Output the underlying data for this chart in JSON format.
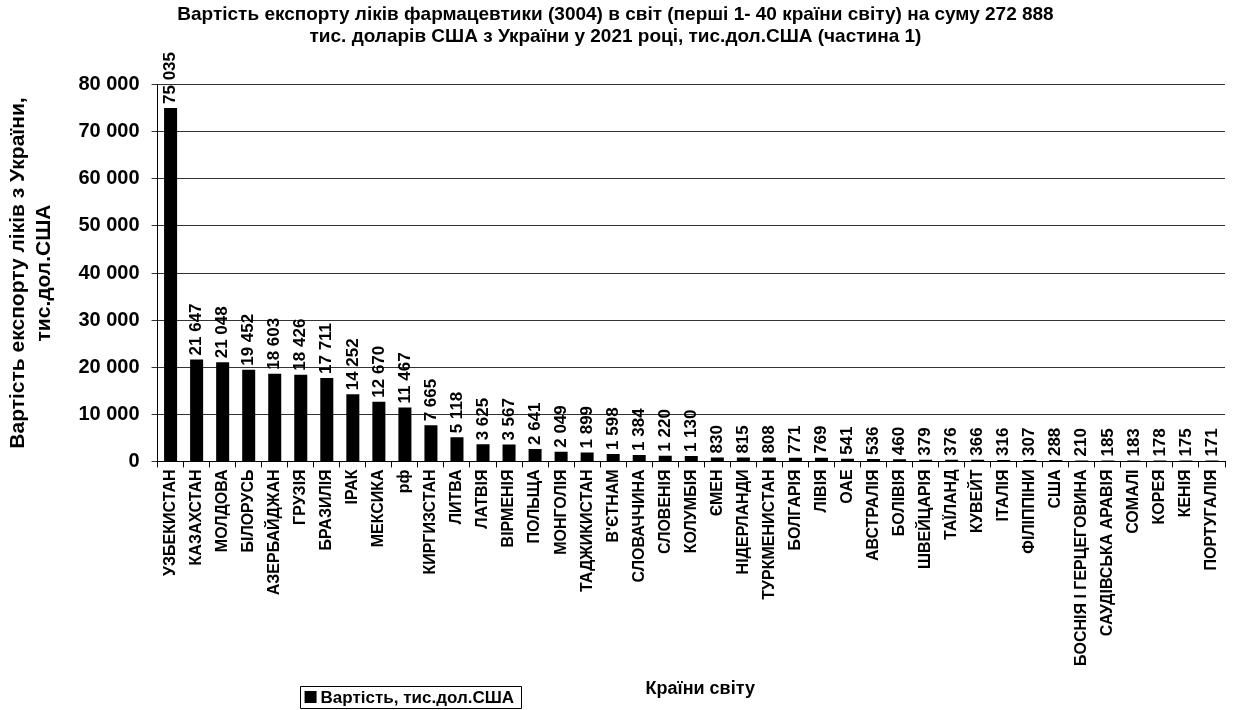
{
  "chart_data": {
    "type": "bar",
    "title": "Вартість експорту ліків фармацевтики (3004) в світ (перші 1- 40 країни світу) на суму 272 888 тис. доларів США з України у 2021 році, тис.дол.США (частина 1)",
    "xlabel": "Країни світу",
    "ylabel": "Вартість експорту ліків з України, тис.дол.США",
    "categories": [
      "УЗБЕКИСТАН",
      "КАЗАХСТАН",
      "МОЛДОВА",
      "БІЛОРУСЬ",
      "АЗЕРБАЙДЖАН",
      "ГРУЗІЯ",
      "БРАЗИЛІЯ",
      "ІРАК",
      "МЕКСИКА",
      "рф",
      "КИРГИЗСТАН",
      "ЛИТВА",
      "ЛАТВІЯ",
      "ВІРМЕНІЯ",
      "ПОЛЬЩА",
      "МОНГОЛІЯ",
      "ТАДЖИКИСТАН",
      "В'ЄТНАМ",
      "СЛОВАЧЧИНА",
      "СЛОВЕНІЯ",
      "КОЛУМБІЯ",
      "ЄМЕН",
      "НІДЕРЛАНДИ",
      "ТУРКМЕНИСТАН",
      "БОЛГАРІЯ",
      "ЛІВІЯ",
      "ОАЕ",
      "АВСТРАЛІЯ",
      "БОЛІВІЯ",
      "ШВЕЙЦАРІЯ",
      "ТАЇЛАНД",
      "КУВЕЙТ",
      "ІТАЛІЯ",
      "ФІЛІППІНИ",
      "США",
      "БОСНІЯ І ГЕРЦЕГОВИНА",
      "САУДІВСЬКА АРАВІЯ",
      "СОМАЛІ",
      "КОРЕЯ",
      "КЕНІЯ",
      "ПОРТУГАЛІЯ"
    ],
    "series": [
      {
        "name": "Вартість, тис.дол.США",
        "color": "#000000",
        "values": [
          75035,
          21647,
          21048,
          19452,
          18603,
          18426,
          17711,
          14252,
          12670,
          11467,
          7665,
          5118,
          3625,
          3567,
          2641,
          2049,
          1899,
          1598,
          1384,
          1220,
          1130,
          830,
          815,
          808,
          771,
          769,
          541,
          536,
          460,
          379,
          376,
          366,
          316,
          307,
          288,
          210,
          185,
          183,
          178,
          175,
          171
        ],
        "value_labels": [
          "75 035",
          "21 647",
          "21 048",
          "19 452",
          "18 603",
          "18 426",
          "17 711",
          "14 252",
          "12 670",
          "11 467",
          "7 665",
          "5 118",
          "3 625",
          "3 567",
          "2 641",
          "2 049",
          "1 899",
          "1 598",
          "1 384",
          "1 220",
          "1 130",
          "830",
          "815",
          "808",
          "771",
          "769",
          "541",
          "536",
          "460",
          "379",
          "376",
          "366",
          "316",
          "307",
          "288",
          "210",
          "185",
          "183",
          "178",
          "175",
          "171"
        ]
      }
    ],
    "ylim": [
      0,
      80000
    ],
    "yticks": [
      {
        "value": 0,
        "label": "0"
      },
      {
        "value": 10000,
        "label": "10 000"
      },
      {
        "value": 20000,
        "label": "20 000"
      },
      {
        "value": 30000,
        "label": "30 000"
      },
      {
        "value": 40000,
        "label": "40 000"
      },
      {
        "value": 50000,
        "label": "50 000"
      },
      {
        "value": 60000,
        "label": "60 000"
      },
      {
        "value": 70000,
        "label": "70 000"
      },
      {
        "value": 80000,
        "label": "80 000"
      }
    ],
    "grid": "y",
    "legend": "bottom left"
  }
}
